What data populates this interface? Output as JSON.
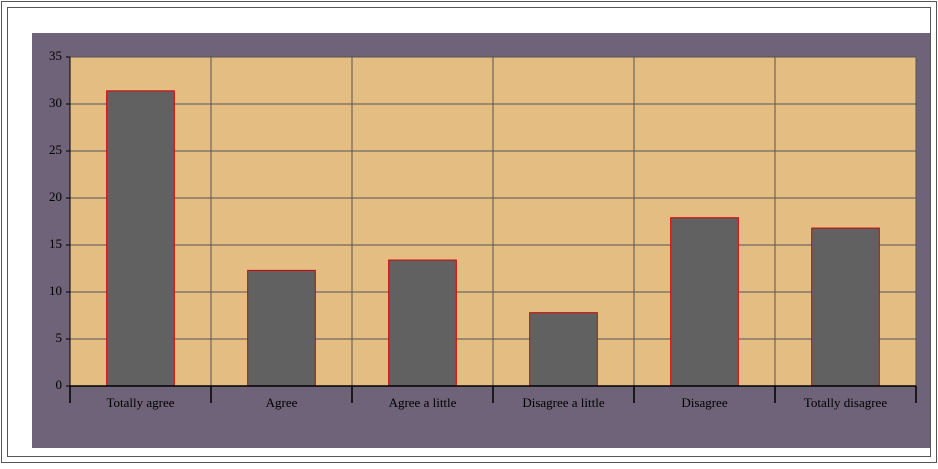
{
  "chart_data": {
    "type": "bar",
    "categories": [
      "Totally agree",
      "Agree",
      "Agree a little",
      "Disagree a little",
      "Disagree",
      "Totally disagree"
    ],
    "values": [
      31.4,
      12.3,
      13.4,
      7.8,
      17.9,
      16.8
    ],
    "color": "#616161",
    "ylim": [
      0,
      35
    ],
    "yticks": [
      0,
      5,
      10,
      15,
      20,
      25,
      30,
      35
    ],
    "grid": true
  }
}
